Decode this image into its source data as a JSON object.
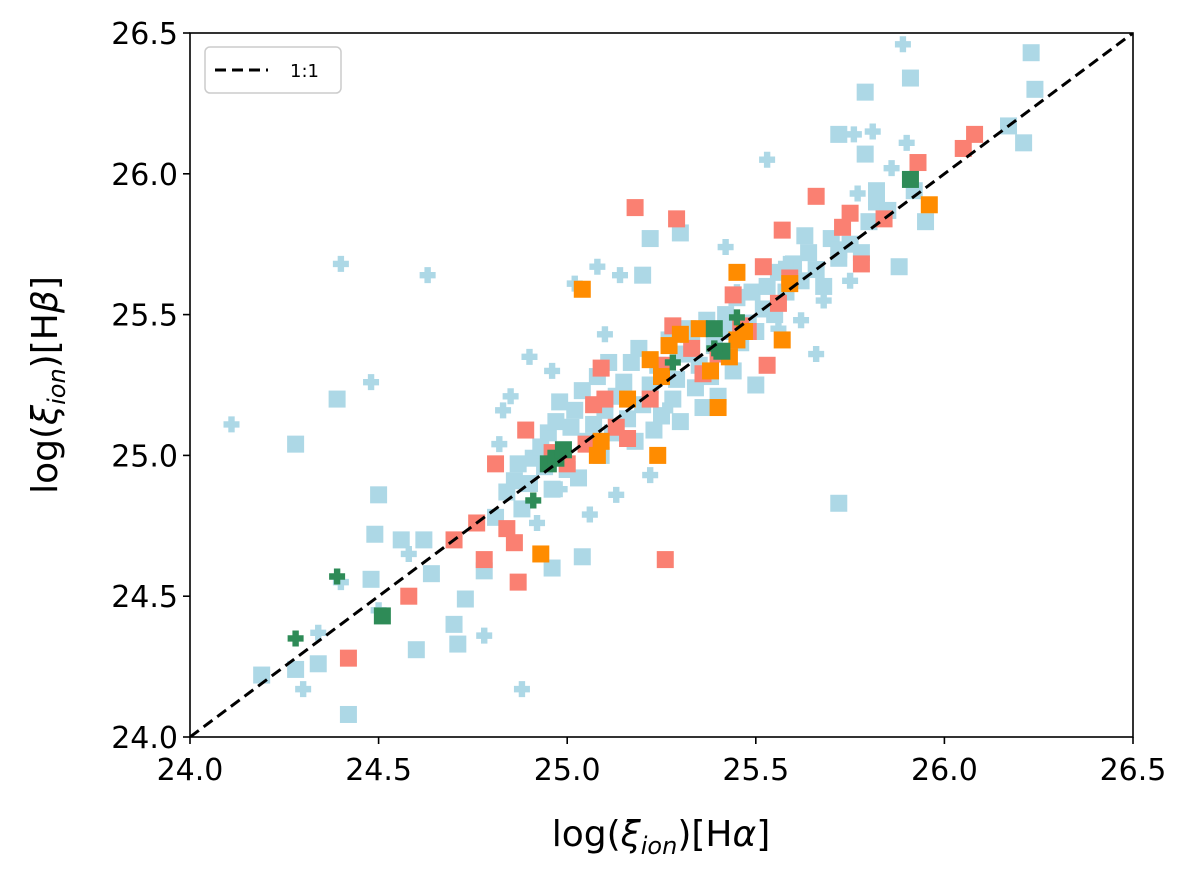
{
  "chart_data": {
    "type": "scatter",
    "title": "",
    "xlabel": "log(ξ_ion)[Hα]",
    "ylabel": "log(ξ_ion)[Hβ]",
    "xlabel_parts": {
      "pre": "log(",
      "greek": "ξ",
      "sub": "ion",
      "post": ")[H",
      "greek2": "α",
      "end": "]"
    },
    "ylabel_parts": {
      "pre": "log(",
      "greek": "ξ",
      "sub": "ion",
      "post": ")[H",
      "greek2": "β",
      "end": "]"
    },
    "xlim": [
      24.0,
      26.5
    ],
    "ylim": [
      24.0,
      26.5
    ],
    "x_ticks": [
      "24.0",
      "24.5",
      "25.0",
      "25.5",
      "26.0",
      "26.5"
    ],
    "y_ticks": [
      "24.0",
      "24.5",
      "25.0",
      "25.5",
      "26.0",
      "26.5"
    ],
    "grid": false,
    "legend": {
      "position": "top-left",
      "entries": [
        {
          "label": "1:1",
          "style": "dashed-line",
          "color": "#000000"
        }
      ]
    },
    "reference_line": {
      "name": "1:1",
      "x": [
        24.0,
        26.5
      ],
      "y": [
        24.0,
        26.5
      ],
      "style": "dashed",
      "color": "#000000"
    },
    "series": [
      {
        "name": "light blue squares",
        "marker": "square",
        "color": "#add8e6",
        "points": [
          [
            24.19,
            24.22
          ],
          [
            24.28,
            24.24
          ],
          [
            24.34,
            24.26
          ],
          [
            24.42,
            24.08
          ],
          [
            24.28,
            25.04
          ],
          [
            24.39,
            25.2
          ],
          [
            24.48,
            24.56
          ],
          [
            24.49,
            24.72
          ],
          [
            24.5,
            24.86
          ],
          [
            24.56,
            24.7
          ],
          [
            24.62,
            24.7
          ],
          [
            24.64,
            24.58
          ],
          [
            24.6,
            24.31
          ],
          [
            24.7,
            24.4
          ],
          [
            24.71,
            24.33
          ],
          [
            24.73,
            24.49
          ],
          [
            24.78,
            24.59
          ],
          [
            24.81,
            24.78
          ],
          [
            24.84,
            24.87
          ],
          [
            24.86,
            24.91
          ],
          [
            24.87,
            24.97
          ],
          [
            24.88,
            24.81
          ],
          [
            24.9,
            24.9
          ],
          [
            24.91,
            24.99
          ],
          [
            24.93,
            25.03
          ],
          [
            24.94,
            24.96
          ],
          [
            24.95,
            25.08
          ],
          [
            24.96,
            24.88
          ],
          [
            24.97,
            25.12
          ],
          [
            24.98,
            25.19
          ],
          [
            24.99,
            25.02
          ],
          [
            25.0,
            24.95
          ],
          [
            25.01,
            25.1
          ],
          [
            25.02,
            25.16
          ],
          [
            25.03,
            24.92
          ],
          [
            25.04,
            25.23
          ],
          [
            25.05,
            25.05
          ],
          [
            25.07,
            25.11
          ],
          [
            25.08,
            25.28
          ],
          [
            25.09,
            25.0
          ],
          [
            25.1,
            25.16
          ],
          [
            25.11,
            25.33
          ],
          [
            25.12,
            25.08
          ],
          [
            25.13,
            25.21
          ],
          [
            25.15,
            25.26
          ],
          [
            25.16,
            25.13
          ],
          [
            25.17,
            25.33
          ],
          [
            25.18,
            25.05
          ],
          [
            25.19,
            25.38
          ],
          [
            25.2,
            25.18
          ],
          [
            25.22,
            25.25
          ],
          [
            25.23,
            25.09
          ],
          [
            25.24,
            25.32
          ],
          [
            25.25,
            25.14
          ],
          [
            25.27,
            25.41
          ],
          [
            25.28,
            25.2
          ],
          [
            25.29,
            25.27
          ],
          [
            25.3,
            25.12
          ],
          [
            25.31,
            25.36
          ],
          [
            25.33,
            25.44
          ],
          [
            25.34,
            25.24
          ],
          [
            25.35,
            25.32
          ],
          [
            25.36,
            25.17
          ],
          [
            25.37,
            25.48
          ],
          [
            25.38,
            25.28
          ],
          [
            25.39,
            25.39
          ],
          [
            25.41,
            25.36
          ],
          [
            25.42,
            25.5
          ],
          [
            25.43,
            25.44
          ],
          [
            25.44,
            25.3
          ],
          [
            25.45,
            25.56
          ],
          [
            25.46,
            25.4
          ],
          [
            25.48,
            25.47
          ],
          [
            25.49,
            25.58
          ],
          [
            25.5,
            25.44
          ],
          [
            25.52,
            25.52
          ],
          [
            25.53,
            25.6
          ],
          [
            25.55,
            25.5
          ],
          [
            25.56,
            25.65
          ],
          [
            25.58,
            25.58
          ],
          [
            25.6,
            25.68
          ],
          [
            25.62,
            25.62
          ],
          [
            25.64,
            25.72
          ],
          [
            25.66,
            25.66
          ],
          [
            25.68,
            25.6
          ],
          [
            25.7,
            25.77
          ],
          [
            25.72,
            25.7
          ],
          [
            25.75,
            25.75
          ],
          [
            25.78,
            25.72
          ],
          [
            25.8,
            25.83
          ],
          [
            25.82,
            25.9
          ],
          [
            25.85,
            25.87
          ],
          [
            25.88,
            25.67
          ],
          [
            25.92,
            25.94
          ],
          [
            25.95,
            25.83
          ],
          [
            24.96,
            24.6
          ],
          [
            25.04,
            24.64
          ],
          [
            25.2,
            25.64
          ],
          [
            25.22,
            25.77
          ],
          [
            25.3,
            25.79
          ],
          [
            25.63,
            25.78
          ],
          [
            25.72,
            25.73
          ],
          [
            25.72,
            24.83
          ],
          [
            25.72,
            26.14
          ],
          [
            25.79,
            26.07
          ],
          [
            25.82,
            25.94
          ],
          [
            25.79,
            26.29
          ],
          [
            25.91,
            26.34
          ],
          [
            26.17,
            26.17
          ],
          [
            26.21,
            26.11
          ],
          [
            26.23,
            26.43
          ],
          [
            26.24,
            26.3
          ],
          [
            25.4,
            25.21
          ],
          [
            25.5,
            25.25
          ],
          [
            25.32,
            25.45
          ]
        ]
      },
      {
        "name": "light blue crosses",
        "marker": "plus",
        "color": "#add8e6",
        "points": [
          [
            24.11,
            25.11
          ],
          [
            24.4,
            25.68
          ],
          [
            24.48,
            25.26
          ],
          [
            24.63,
            25.64
          ],
          [
            24.5,
            24.45
          ],
          [
            24.3,
            24.17
          ],
          [
            24.34,
            24.37
          ],
          [
            24.4,
            24.55
          ],
          [
            24.58,
            24.65
          ],
          [
            24.78,
            24.36
          ],
          [
            24.82,
            25.04
          ],
          [
            24.88,
            24.17
          ],
          [
            24.83,
            25.16
          ],
          [
            24.85,
            25.21
          ],
          [
            24.92,
            24.76
          ],
          [
            24.9,
            25.35
          ],
          [
            24.98,
            24.88
          ],
          [
            25.02,
            25.61
          ],
          [
            25.08,
            25.67
          ],
          [
            25.14,
            25.64
          ],
          [
            25.06,
            24.79
          ],
          [
            25.13,
            24.86
          ],
          [
            25.26,
            25.16
          ],
          [
            25.32,
            25.41
          ],
          [
            25.45,
            25.58
          ],
          [
            25.53,
            26.05
          ],
          [
            25.62,
            25.48
          ],
          [
            25.66,
            25.36
          ],
          [
            25.42,
            25.74
          ],
          [
            25.58,
            25.68
          ],
          [
            25.77,
            25.93
          ],
          [
            25.76,
            26.14
          ],
          [
            25.81,
            26.15
          ],
          [
            25.86,
            26.02
          ],
          [
            25.9,
            26.11
          ],
          [
            25.89,
            26.46
          ],
          [
            25.68,
            25.55
          ],
          [
            25.75,
            25.62
          ],
          [
            25.56,
            25.45
          ],
          [
            25.1,
            25.43
          ],
          [
            24.96,
            25.3
          ],
          [
            25.22,
            24.93
          ]
        ]
      },
      {
        "name": "salmon squares",
        "marker": "square",
        "color": "#fa8072",
        "points": [
          [
            24.42,
            24.28
          ],
          [
            24.58,
            24.5
          ],
          [
            24.7,
            24.7
          ],
          [
            24.76,
            24.76
          ],
          [
            24.78,
            24.63
          ],
          [
            24.81,
            24.97
          ],
          [
            24.84,
            24.74
          ],
          [
            24.86,
            24.69
          ],
          [
            24.87,
            24.55
          ],
          [
            24.89,
            25.09
          ],
          [
            24.96,
            25.01
          ],
          [
            25.0,
            24.97
          ],
          [
            25.05,
            25.04
          ],
          [
            25.07,
            25.18
          ],
          [
            25.09,
            25.31
          ],
          [
            25.1,
            25.2
          ],
          [
            25.13,
            25.1
          ],
          [
            25.16,
            25.06
          ],
          [
            25.18,
            25.88
          ],
          [
            25.22,
            25.2
          ],
          [
            25.25,
            25.32
          ],
          [
            25.26,
            24.63
          ],
          [
            25.28,
            25.46
          ],
          [
            25.29,
            25.84
          ],
          [
            25.33,
            25.38
          ],
          [
            25.36,
            25.29
          ],
          [
            25.4,
            25.36
          ],
          [
            25.44,
            25.57
          ],
          [
            25.46,
            25.46
          ],
          [
            25.48,
            25.44
          ],
          [
            25.52,
            25.67
          ],
          [
            25.53,
            25.32
          ],
          [
            25.56,
            25.54
          ],
          [
            25.57,
            25.8
          ],
          [
            25.59,
            25.63
          ],
          [
            25.66,
            25.92
          ],
          [
            25.73,
            25.81
          ],
          [
            25.75,
            25.86
          ],
          [
            25.78,
            25.68
          ],
          [
            25.84,
            25.84
          ],
          [
            25.93,
            26.04
          ],
          [
            26.05,
            26.09
          ],
          [
            26.08,
            26.14
          ]
        ]
      },
      {
        "name": "orange squares",
        "marker": "square",
        "color": "#ff8c00",
        "points": [
          [
            24.93,
            24.65
          ],
          [
            25.04,
            25.59
          ],
          [
            25.08,
            25.0
          ],
          [
            25.09,
            25.05
          ],
          [
            25.16,
            25.2
          ],
          [
            25.22,
            25.34
          ],
          [
            25.24,
            25.0
          ],
          [
            25.25,
            25.28
          ],
          [
            25.27,
            25.39
          ],
          [
            25.3,
            25.43
          ],
          [
            25.35,
            25.45
          ],
          [
            25.38,
            25.3
          ],
          [
            25.4,
            25.17
          ],
          [
            25.43,
            25.35
          ],
          [
            25.45,
            25.41
          ],
          [
            25.45,
            25.65
          ],
          [
            25.47,
            25.44
          ],
          [
            25.57,
            25.41
          ],
          [
            25.59,
            25.61
          ],
          [
            25.96,
            25.89
          ]
        ]
      },
      {
        "name": "dark green squares",
        "marker": "square",
        "color": "#2e8b57",
        "points": [
          [
            24.51,
            24.43
          ],
          [
            24.95,
            24.97
          ],
          [
            24.97,
            24.99
          ],
          [
            24.99,
            25.02
          ],
          [
            25.39,
            25.45
          ],
          [
            25.41,
            25.37
          ],
          [
            25.91,
            25.98
          ]
        ]
      },
      {
        "name": "dark green crosses",
        "marker": "plus",
        "color": "#2e8b57",
        "points": [
          [
            24.28,
            24.35
          ],
          [
            24.39,
            24.57
          ],
          [
            24.91,
            24.84
          ],
          [
            25.28,
            25.33
          ],
          [
            25.39,
            25.38
          ],
          [
            25.45,
            25.49
          ]
        ]
      }
    ]
  }
}
